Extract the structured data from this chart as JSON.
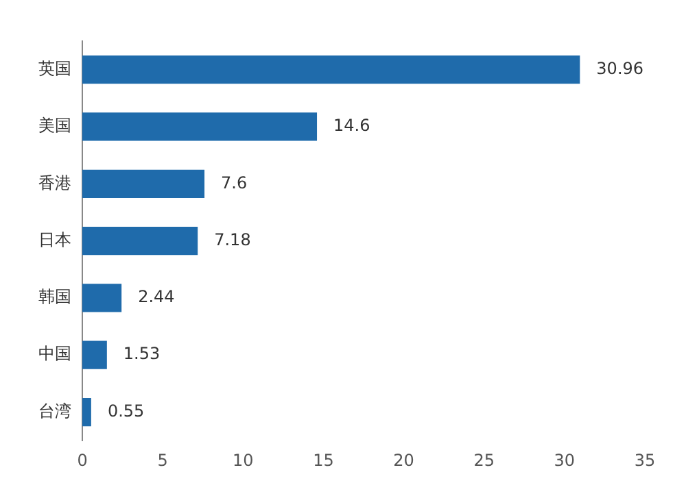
{
  "chart_data": {
    "type": "bar",
    "orientation": "horizontal",
    "categories": [
      "英国",
      "美国",
      "香港",
      "日本",
      "韩国",
      "中国",
      "台湾"
    ],
    "values": [
      30.96,
      14.6,
      7.6,
      7.18,
      2.44,
      1.53,
      0.55
    ],
    "color": "#1f6bab",
    "data_labels": true,
    "grid": false,
    "legend": false,
    "xlim": [
      0,
      35
    ],
    "xticks": [
      0,
      5,
      10,
      15,
      20,
      25,
      30,
      35
    ]
  }
}
